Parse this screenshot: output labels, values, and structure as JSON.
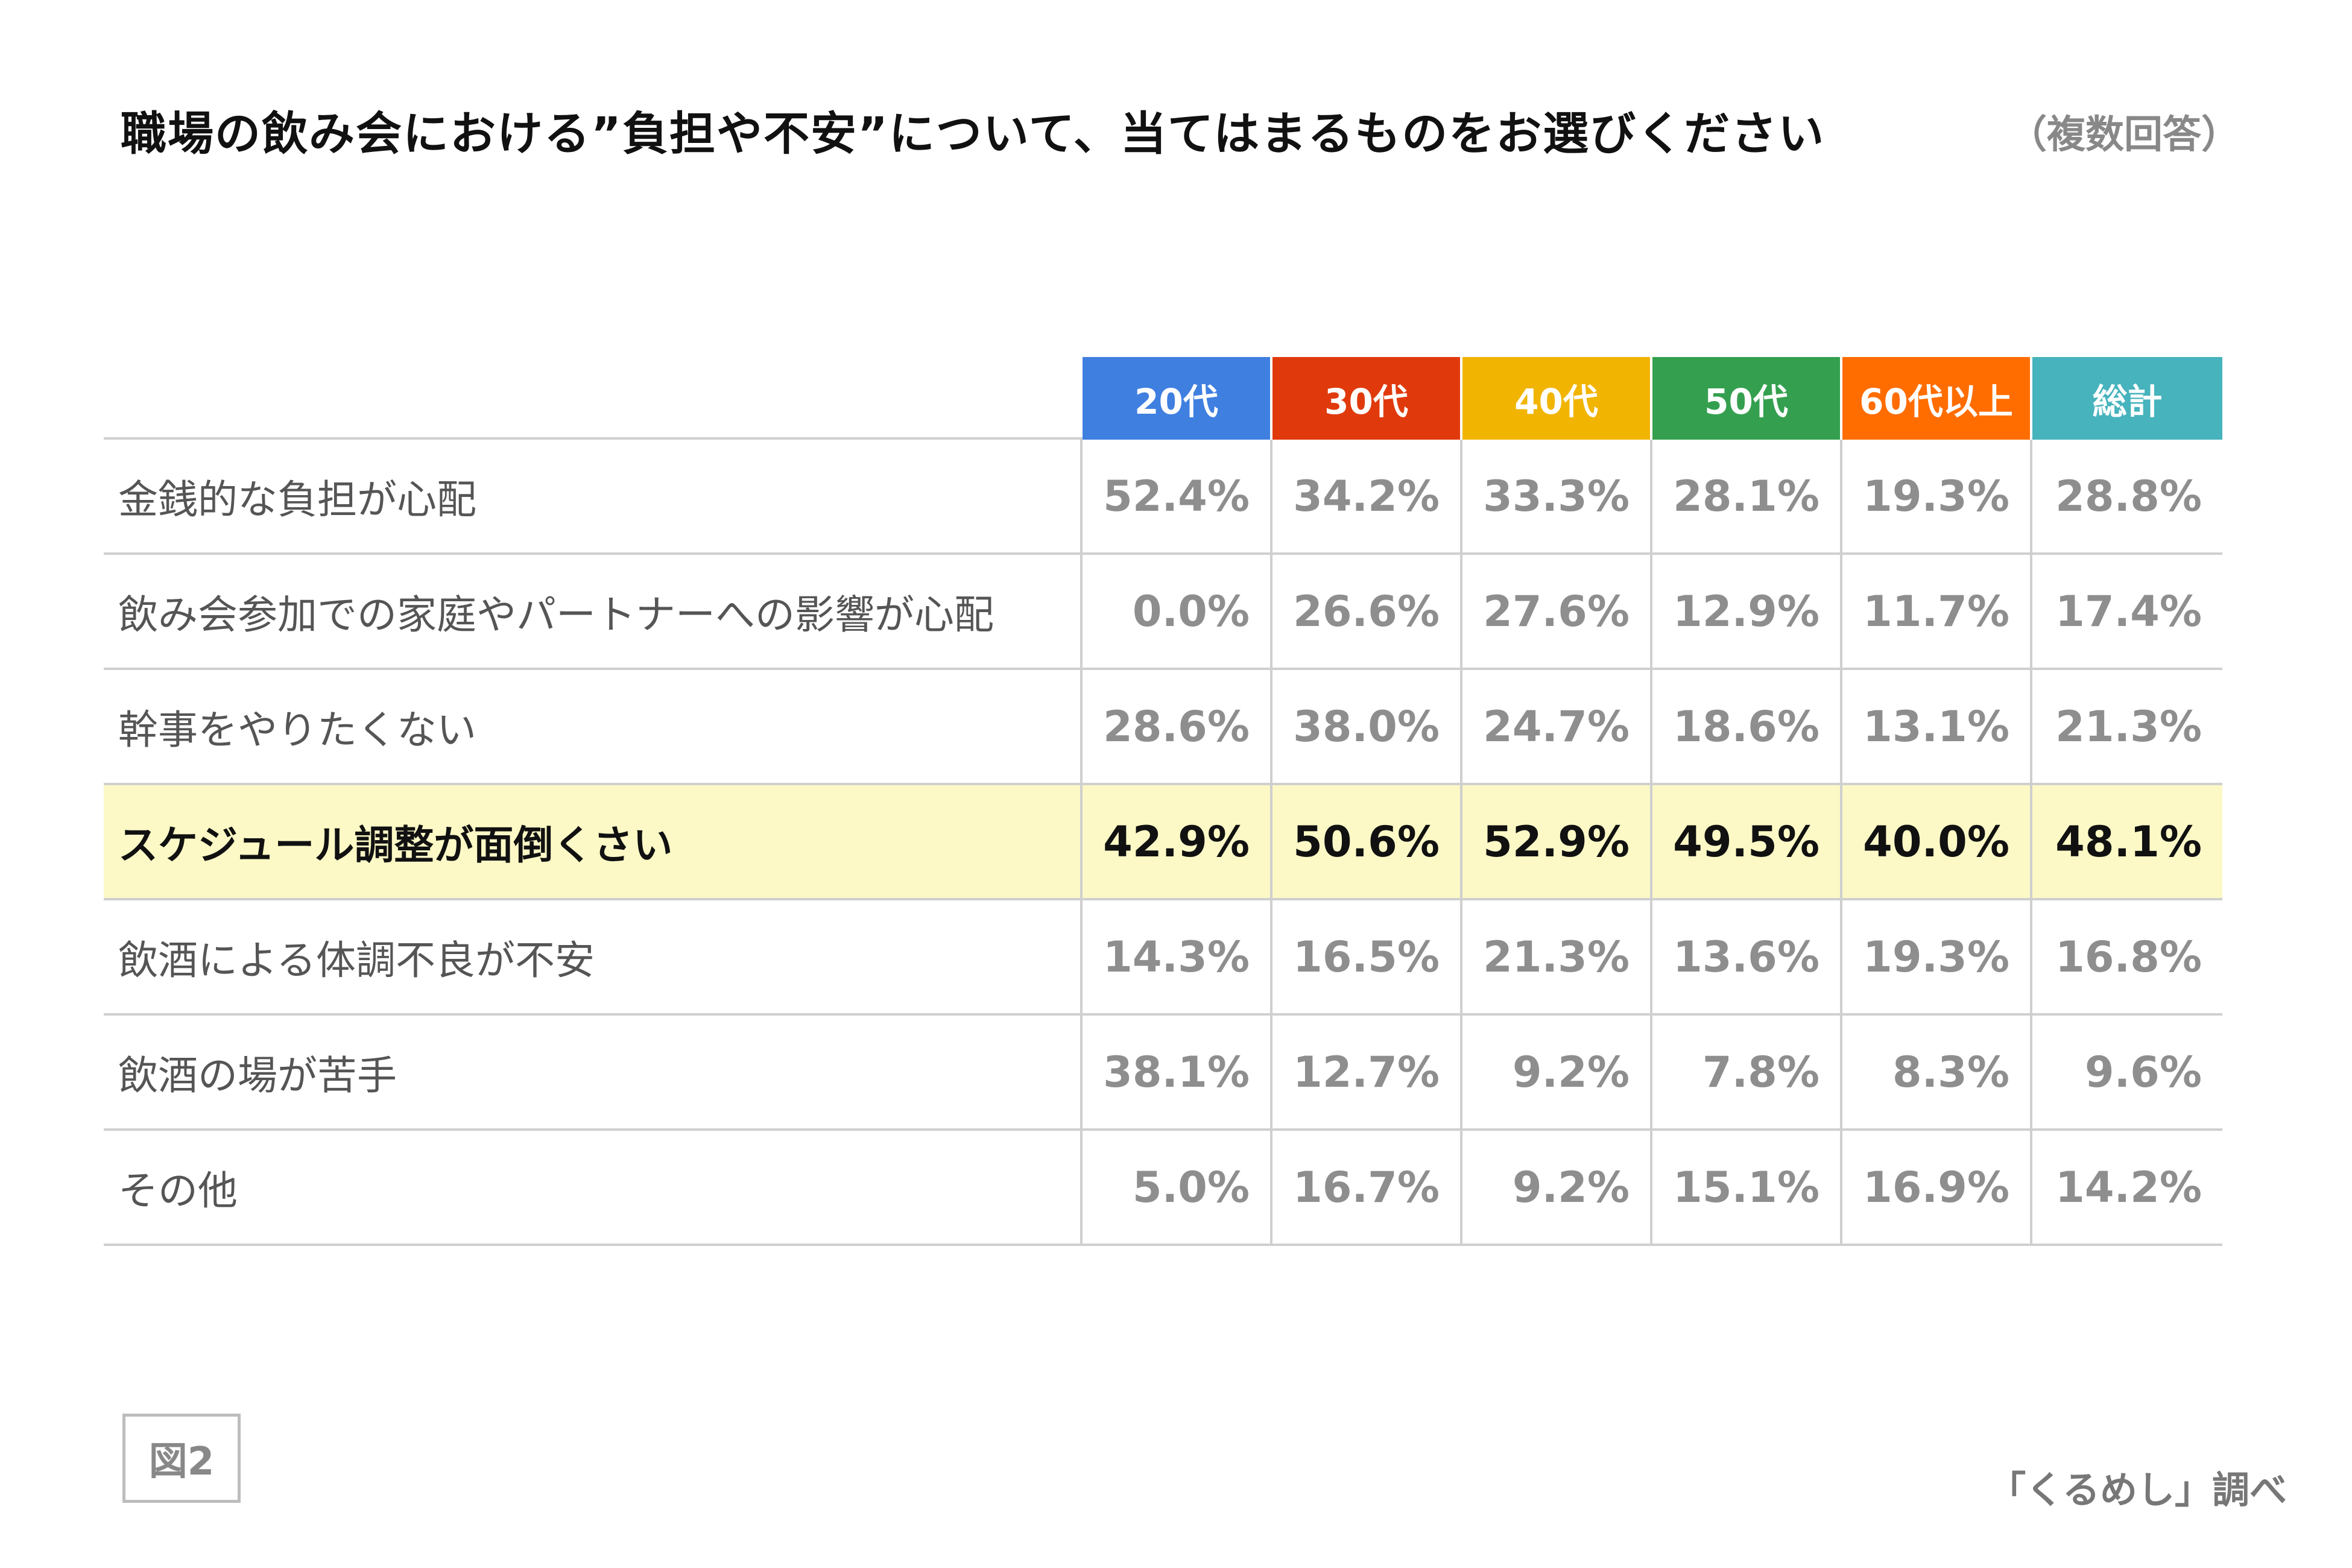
{
  "title": "職場の飲み会における”負担や不安”について、当てはまるものをお選びください",
  "subtitle": "（複数回答）",
  "figure_label": "図2",
  "source": "「くるめし」調べ",
  "chart_data": {
    "type": "table",
    "columns": [
      {
        "label": "20代",
        "color": "#3f7fe0"
      },
      {
        "label": "30代",
        "color": "#e03a0c"
      },
      {
        "label": "40代",
        "color": "#f1b400"
      },
      {
        "label": "50代",
        "color": "#34a04f"
      },
      {
        "label": "60代以上",
        "color": "#ff6d00"
      },
      {
        "label": "総計",
        "color": "#46b3bd"
      }
    ],
    "rows": [
      {
        "label": "金銭的な負担が心配",
        "values": [
          "52.4%",
          "34.2%",
          "33.3%",
          "28.1%",
          "19.3%",
          "28.8%"
        ],
        "highlight": false
      },
      {
        "label": "飲み会参加での家庭やパートナーへの影響が心配",
        "values": [
          "0.0%",
          "26.6%",
          "27.6%",
          "12.9%",
          "11.7%",
          "17.4%"
        ],
        "highlight": false
      },
      {
        "label": "幹事をやりたくない",
        "values": [
          "28.6%",
          "38.0%",
          "24.7%",
          "18.6%",
          "13.1%",
          "21.3%"
        ],
        "highlight": false
      },
      {
        "label": "スケジュール調整が面倒くさい",
        "values": [
          "42.9%",
          "50.6%",
          "52.9%",
          "49.5%",
          "40.0%",
          "48.1%"
        ],
        "highlight": true
      },
      {
        "label": "飲酒による体調不良が不安",
        "values": [
          "14.3%",
          "16.5%",
          "21.3%",
          "13.6%",
          "19.3%",
          "16.8%"
        ],
        "highlight": false
      },
      {
        "label": "飲酒の場が苦手",
        "values": [
          "38.1%",
          "12.7%",
          "9.2%",
          "7.8%",
          "8.3%",
          "9.6%"
        ],
        "highlight": false
      },
      {
        "label": "その他",
        "values": [
          "5.0%",
          "16.7%",
          "9.2%",
          "15.1%",
          "16.9%",
          "14.2%"
        ],
        "highlight": false
      }
    ],
    "highlight_color": "#fcf9c6"
  }
}
